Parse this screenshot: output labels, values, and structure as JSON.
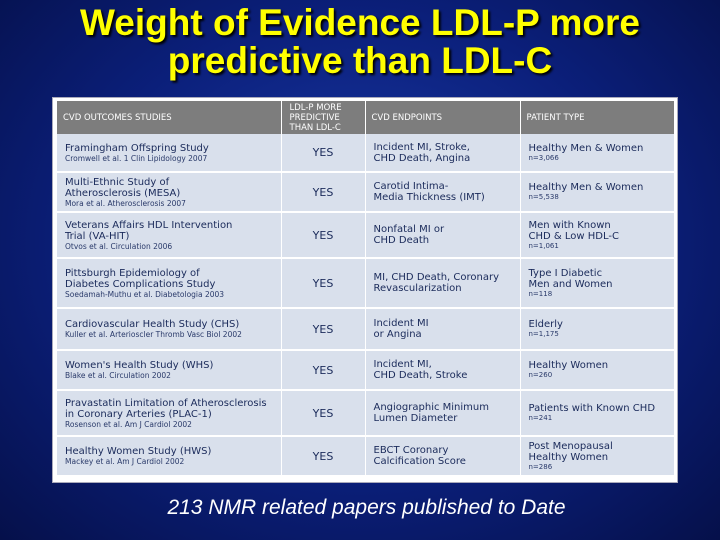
{
  "title": {
    "line1": "Weight of Evidence LDL-P more",
    "line2": "predictive than LDL-C"
  },
  "table": {
    "headers": [
      "CVD OUTCOMES STUDIES",
      "LDL-P MORE PREDICTIVE THAN LDL-C",
      "CVD ENDPOINTS",
      "PATIENT TYPE"
    ],
    "rows": [
      {
        "study": "Framingham Offspring Study",
        "citation": "Cromwell et al. 1 Clin Lipidology 2007",
        "predictive": "YES",
        "endpoints": "Incident MI, Stroke,\nCHD Death, Angina",
        "patient": "Healthy Men & Women",
        "n": "n=3,066"
      },
      {
        "study": "Multi-Ethnic Study of\nAtherosclerosis (MESA)",
        "citation": "Mora et al. Atherosclerosis 2007",
        "predictive": "YES",
        "endpoints": "Carotid Intima-\nMedia Thickness (IMT)",
        "patient": "Healthy Men & Women",
        "n": "n=5,538"
      },
      {
        "study": "Veterans Affairs HDL Intervention\nTrial (VA-HIT)",
        "citation": "Otvos et al. Circulation 2006",
        "predictive": "YES",
        "endpoints": "Nonfatal MI or\nCHD Death",
        "patient": "Men with Known\nCHD & Low HDL-C",
        "n": "n=1,061"
      },
      {
        "study": "Pittsburgh Epidemiology of\nDiabetes Complications Study",
        "citation": "Soedamah-Muthu et al. Diabetologia 2003",
        "predictive": "YES",
        "endpoints": "MI, CHD Death, Coronary\nRevascularization",
        "patient": "Type I Diabetic\nMen and Women",
        "n": "n=118"
      },
      {
        "study": "Cardiovascular Health Study (CHS)",
        "citation": "Kuller et al. Arterioscler Thromb Vasc Biol 2002",
        "predictive": "YES",
        "endpoints": "Incident MI\nor Angina",
        "patient": "Elderly",
        "n": "n=1,175"
      },
      {
        "study": "Women's Health Study (WHS)",
        "citation": "Blake et al. Circulation 2002",
        "predictive": "YES",
        "endpoints": "Incident MI,\nCHD Death, Stroke",
        "patient": "Healthy Women",
        "n": "n=260"
      },
      {
        "study": "Pravastatin Limitation of Atherosclerosis\nin Coronary Arteries (PLAC-1)",
        "citation": "Rosenson et al. Am J Cardiol 2002",
        "predictive": "YES",
        "endpoints": "Angiographic Minimum\nLumen Diameter",
        "patient": "Patients with Known CHD",
        "n": "n=241"
      },
      {
        "study": "Healthy Women Study (HWS)",
        "citation": "Mackey et al. Am J Cardiol 2002",
        "predictive": "YES",
        "endpoints": "EBCT Coronary\nCalcification Score",
        "patient": "Post Menopausal\nHealthy Women",
        "n": "n=286"
      }
    ]
  },
  "footer": "213 NMR related papers published to Date"
}
